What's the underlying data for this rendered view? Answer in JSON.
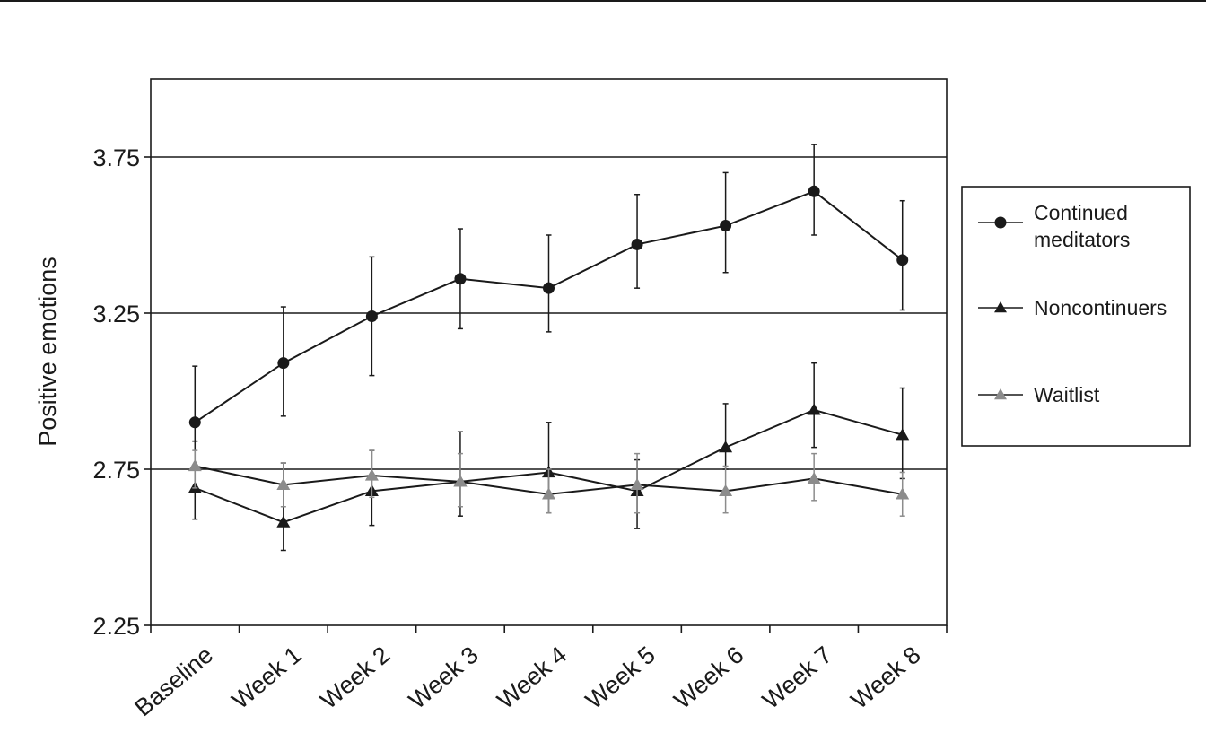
{
  "chart_data": {
    "type": "line",
    "title": "",
    "xlabel": "",
    "ylabel": "Positive emotions",
    "categories": [
      "Baseline",
      "Week 1",
      "Week 2",
      "Week 3",
      "Week 4",
      "Week 5",
      "Week 6",
      "Week 7",
      "Week 8"
    ],
    "ylim": [
      2.25,
      4.0
    ],
    "yticks": [
      "2.25",
      "2.75",
      "3.25",
      "3.75"
    ],
    "grid": "horizontal at 2.75, 3.25, 3.75",
    "legend_position": "right",
    "series": [
      {
        "name": "Continued meditators",
        "marker": "circle",
        "color": "#1a1a1a",
        "values": [
          2.9,
          3.09,
          3.24,
          3.36,
          3.33,
          3.47,
          3.53,
          3.64,
          3.42
        ],
        "error_upper": [
          3.08,
          3.27,
          3.43,
          3.52,
          3.5,
          3.63,
          3.7,
          3.79,
          3.61
        ],
        "error_lower": [
          2.84,
          2.92,
          3.05,
          3.2,
          3.19,
          3.33,
          3.38,
          3.5,
          3.26
        ]
      },
      {
        "name": "Noncontinuers",
        "marker": "triangle",
        "color": "#1a1a1a",
        "values": [
          2.69,
          2.58,
          2.68,
          2.71,
          2.74,
          2.68,
          2.82,
          2.94,
          2.86
        ],
        "error_upper": [
          2.84,
          2.77,
          2.81,
          2.87,
          2.9,
          2.78,
          2.96,
          3.09,
          3.01
        ],
        "error_lower": [
          2.59,
          2.49,
          2.57,
          2.6,
          2.61,
          2.56,
          2.75,
          2.82,
          2.72
        ]
      },
      {
        "name": "Waitlist",
        "marker": "triangle",
        "color": "#8c8c8c",
        "values": [
          2.76,
          2.7,
          2.73,
          2.71,
          2.67,
          2.7,
          2.68,
          2.72,
          2.67
        ],
        "error_upper": [
          2.81,
          2.77,
          2.81,
          2.8,
          2.75,
          2.8,
          2.76,
          2.8,
          2.74
        ],
        "error_lower": [
          2.69,
          2.63,
          2.66,
          2.63,
          2.61,
          2.61,
          2.61,
          2.65,
          2.6
        ]
      }
    ]
  }
}
